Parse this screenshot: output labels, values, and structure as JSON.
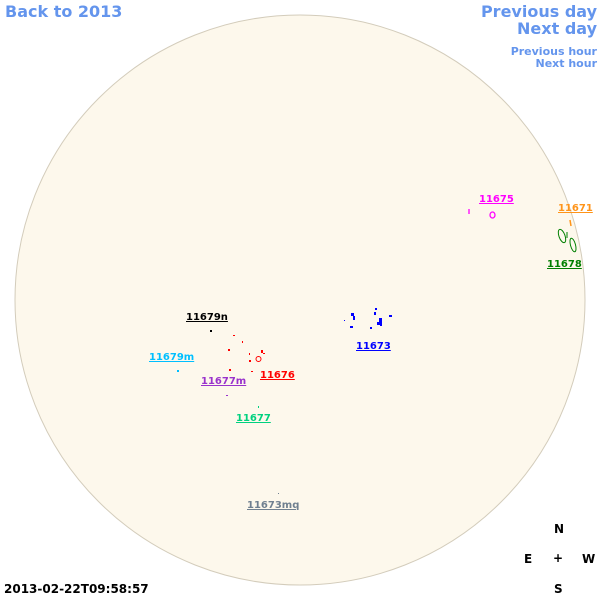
{
  "nav": {
    "back": "Back to 2013",
    "previous_day": "Previous day",
    "next_day": "Next day",
    "previous_hour": "Previous hour",
    "next_hour": "Next hour"
  },
  "colors": {
    "link": "#6495ed",
    "disk": "#fdf8ec",
    "limb": "#d3ccbb"
  },
  "regions": [
    {
      "label": "11675",
      "color": "#ff00ff"
    },
    {
      "label": "11671",
      "color": "#ff9419"
    },
    {
      "label": "11678",
      "color": "#007f00"
    },
    {
      "label": "11673",
      "color": "#0000ff"
    },
    {
      "label": "11679n",
      "color": "#000000"
    },
    {
      "label": "11679m",
      "color": "#00bfff"
    },
    {
      "label": "11677m",
      "color": "#9932cc"
    },
    {
      "label": "11676",
      "color": "#ff0000"
    },
    {
      "label": "11677",
      "color": "#00d17f"
    },
    {
      "label": "11673mq",
      "color": "#708090"
    }
  ],
  "compass": {
    "north": "N",
    "south": "S",
    "east": "E",
    "west": "W",
    "center": "+"
  },
  "timestamp": "2013-02-22T09:58:57"
}
